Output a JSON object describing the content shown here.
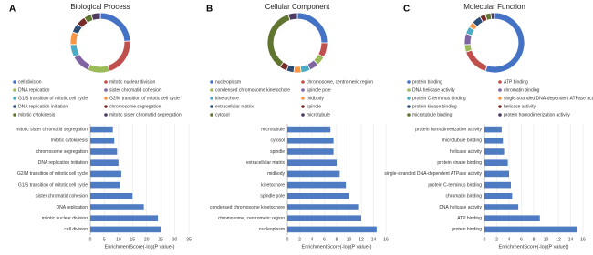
{
  "chart_data": [
    {
      "type": "pie",
      "panel": "A",
      "title": "Biological Process",
      "categories": [
        "cell division",
        "mitotic nuclear division",
        "DNA replication",
        "sister chromatid cohesion",
        "G1/S transition of mitotic cell cycle",
        "G2/M transition of mitotic cell cycle",
        "DNA replication initiation",
        "chromosome segregation",
        "mitotic cytokinesis",
        "mitotic sister chromatid segregation"
      ],
      "values": [
        24,
        21,
        12,
        10,
        7,
        7,
        5,
        5,
        4,
        5
      ],
      "colors": [
        "#4472c4",
        "#c0504d",
        "#9bbb59",
        "#8064a2",
        "#4bacc6",
        "#f79646",
        "#2c4d75",
        "#772c2a",
        "#5f7530",
        "#4d3b62"
      ]
    },
    {
      "type": "bar",
      "xlabel": "EnrichmentScore(-log(P value))",
      "color": "#4f7bc2",
      "grid": true,
      "categories": [
        "mitotic sister chromatid segregation",
        "mitotic cytokinesis",
        "chromosome segregation",
        "DNA replication initiation",
        "G2/M transition of mitotic cell cycle",
        "G1/S transition of mitotic cell cycle",
        "sister chromatid cohesion",
        "DNA replication",
        "mitotic nuclear division",
        "cell division"
      ],
      "values": [
        8,
        8.5,
        9.5,
        10,
        11,
        10.5,
        15,
        19,
        24,
        25
      ],
      "xlim": [
        0,
        35
      ],
      "xticks": [
        0,
        5,
        10,
        15,
        20,
        25,
        30,
        35
      ]
    },
    {
      "type": "pie",
      "panel": "B",
      "title": "Cellular Component",
      "categories": [
        "nucleoplasm",
        "chromosome, centromeric region",
        "condensed chromosome kinetochore",
        "spindle pole",
        "kinetochore",
        "midbody",
        "extracellular matrix",
        "spindle",
        "cytosol",
        "microtubule"
      ],
      "values": [
        25,
        8,
        5,
        5,
        5,
        4,
        4,
        4,
        35,
        5
      ],
      "colors": [
        "#4472c4",
        "#c0504d",
        "#9bbb59",
        "#8064a2",
        "#4bacc6",
        "#f79646",
        "#2c4d75",
        "#772c2a",
        "#5f7530",
        "#4d3b62"
      ]
    },
    {
      "type": "bar",
      "xlabel": "EnrichmentScore(-log(P value))",
      "color": "#4f7bc2",
      "grid": true,
      "categories": [
        "microtubule",
        "cytosol",
        "spindle",
        "extracellular matrix",
        "midbody",
        "kinetochore",
        "spindle pole",
        "condensed chromosome kinetochore",
        "chromosome, centromeric region",
        "nucleoplasm"
      ],
      "values": [
        7,
        7.5,
        7.5,
        8,
        8.5,
        9.5,
        10,
        11.5,
        12,
        14.5
      ],
      "xlim": [
        0,
        16
      ],
      "xticks": [
        0,
        2,
        4,
        6,
        8,
        10,
        12,
        14,
        16
      ]
    },
    {
      "type": "pie",
      "panel": "C",
      "title": "Molecular Function",
      "categories": [
        "protein binding",
        "ATP binding",
        "DNA helicase activity",
        "chromatin binding",
        "protein C-terminus binding",
        "single-stranded DNA-dependent ATPase activity",
        "protein kinase binding",
        "helicase activity",
        "microtubule binding",
        "protein homodimerization activity"
      ],
      "values": [
        55,
        15,
        4,
        6,
        4,
        3,
        5,
        3,
        3,
        2
      ],
      "colors": [
        "#4472c4",
        "#c0504d",
        "#9bbb59",
        "#8064a2",
        "#4bacc6",
        "#f79646",
        "#2c4d75",
        "#772c2a",
        "#5f7530",
        "#4d3b62"
      ]
    },
    {
      "type": "bar",
      "xlabel": "EnrichmentScore(-log(P value))",
      "color": "#4f7bc2",
      "grid": true,
      "categories": [
        "protein homodimerization activity",
        "microtubule binding",
        "helicase activity",
        "protein kinase binding",
        "single-stranded DNA-dependent ATPase activity",
        "protein C-terminus binding",
        "chromatin binding",
        "DNA helicase activity",
        "ATP binding",
        "protein binding"
      ],
      "values": [
        2.8,
        3,
        3.2,
        3.8,
        4,
        4.3,
        4.5,
        5.5,
        9,
        15
      ],
      "xlim": [
        0,
        16
      ],
      "xticks": [
        0,
        2,
        4,
        6,
        8,
        10,
        12,
        14,
        16
      ]
    }
  ]
}
